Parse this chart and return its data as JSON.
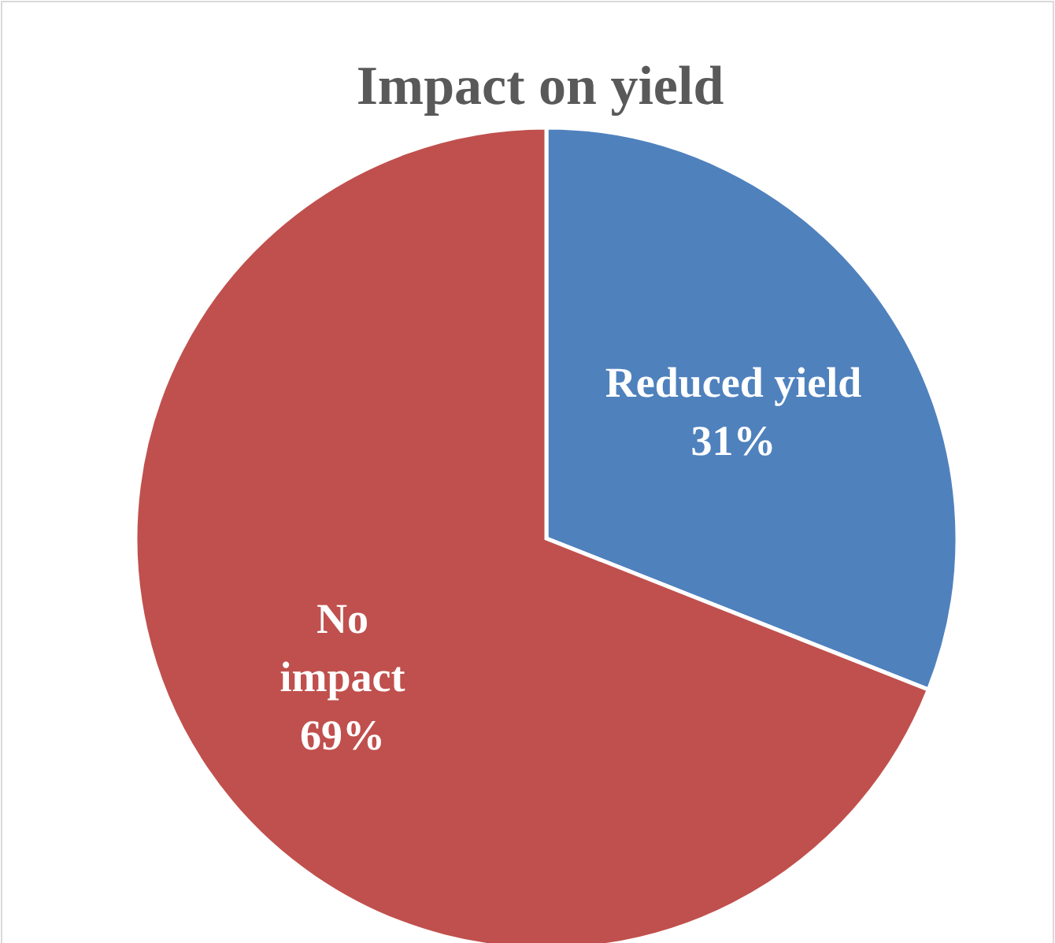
{
  "chart_data": {
    "type": "pie",
    "title": "Impact on yield",
    "categories": [
      "Reduced yield",
      "No impact"
    ],
    "values": [
      31,
      69
    ],
    "colors": [
      "#4f81bd",
      "#c0504d"
    ],
    "value_labels": [
      "31%",
      "69%"
    ]
  }
}
